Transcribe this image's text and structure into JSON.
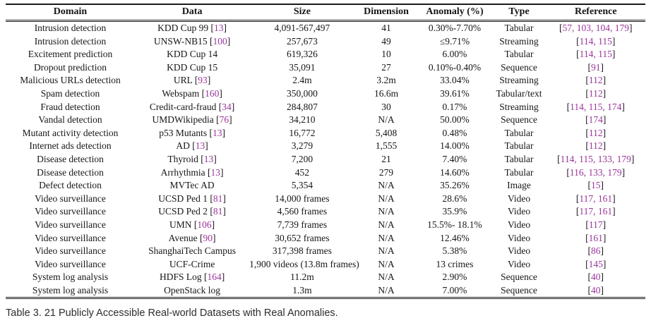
{
  "table": {
    "columns": [
      "Domain",
      "Data",
      "Size",
      "Dimension",
      "Anomaly (%)",
      "Type",
      "Reference"
    ],
    "rows": [
      {
        "domain": "Intrusion detection",
        "data": "KDD Cup 99",
        "cite": "13",
        "size": "4,091-567,497",
        "dimension": "41",
        "anomaly": "0.30%-7.70%",
        "type": "Tabular",
        "references": [
          "57",
          "103",
          "104",
          "179"
        ]
      },
      {
        "domain": "Intrusion detection",
        "data": "UNSW-NB15",
        "cite": "100",
        "size": "257,673",
        "dimension": "49",
        "anomaly": "≤9.71%",
        "type": "Streaming",
        "references": [
          "114",
          "115"
        ]
      },
      {
        "domain": "Excitement prediction",
        "data": "KDD Cup 14",
        "cite": null,
        "size": "619,326",
        "dimension": "10",
        "anomaly": "6.00%",
        "type": "Tabular",
        "references": [
          "114",
          "115"
        ]
      },
      {
        "domain": "Dropout prediction",
        "data": "KDD Cup 15",
        "cite": null,
        "size": "35,091",
        "dimension": "27",
        "anomaly": "0.10%-0.40%",
        "type": "Sequence",
        "references": [
          "91"
        ]
      },
      {
        "domain": "Malicious URLs detection",
        "data": "URL",
        "cite": "93",
        "size": "2.4m",
        "dimension": "3.2m",
        "anomaly": "33.04%",
        "type": "Streaming",
        "references": [
          "112"
        ]
      },
      {
        "domain": "Spam detection",
        "data": "Webspam",
        "cite": "160",
        "size": "350,000",
        "dimension": "16.6m",
        "anomaly": "39.61%",
        "type": "Tabular/text",
        "references": [
          "112"
        ]
      },
      {
        "domain": "Fraud detection",
        "data": "Credit-card-fraud",
        "cite": "34",
        "size": "284,807",
        "dimension": "30",
        "anomaly": "0.17%",
        "type": "Streaming",
        "references": [
          "114",
          "115",
          "174"
        ]
      },
      {
        "domain": "Vandal detection",
        "data": "UMDWikipedia",
        "cite": "76",
        "size": "34,210",
        "dimension": "N/A",
        "anomaly": "50.00%",
        "type": "Sequence",
        "references": [
          "174"
        ]
      },
      {
        "domain": "Mutant activity detection",
        "data": "p53 Mutants",
        "cite": "13",
        "size": "16,772",
        "dimension": "5,408",
        "anomaly": "0.48%",
        "type": "Tabular",
        "references": [
          "112"
        ]
      },
      {
        "domain": "Internet ads detection",
        "data": "AD",
        "cite": "13",
        "size": "3,279",
        "dimension": "1,555",
        "anomaly": "14.00%",
        "type": "Tabular",
        "references": [
          "112"
        ]
      },
      {
        "domain": "Disease detection",
        "data": "Thyroid",
        "cite": "13",
        "size": "7,200",
        "dimension": "21",
        "anomaly": "7.40%",
        "type": "Tabular",
        "references": [
          "114",
          "115",
          "133",
          "179"
        ]
      },
      {
        "domain": "Disease detection",
        "data": "Arrhythmia",
        "cite": "13",
        "size": "452",
        "dimension": "279",
        "anomaly": "14.60%",
        "type": "Tabular",
        "references": [
          "116",
          "133",
          "179"
        ]
      },
      {
        "domain": "Defect detection",
        "data": "MVTec AD",
        "cite": null,
        "size": "5,354",
        "dimension": "N/A",
        "anomaly": "35.26%",
        "type": "Image",
        "references": [
          "15"
        ]
      },
      {
        "domain": "Video surveillance",
        "data": "UCSD Ped 1",
        "cite": "81",
        "size": "14,000 frames",
        "dimension": "N/A",
        "anomaly": "28.6%",
        "type": "Video",
        "references": [
          "117",
          "161"
        ]
      },
      {
        "domain": "Video surveillance",
        "data": "UCSD Ped 2",
        "cite": "81",
        "size": "4,560 frames",
        "dimension": "N/A",
        "anomaly": "35.9%",
        "type": "Video",
        "references": [
          "117",
          "161"
        ]
      },
      {
        "domain": "Video surveillance",
        "data": "UMN",
        "cite": "106",
        "size": "7,739 frames",
        "dimension": "N/A",
        "anomaly": "15.5%- 18.1%",
        "type": "Video",
        "references": [
          "117"
        ]
      },
      {
        "domain": "Video surveillance",
        "data": "Avenue",
        "cite": "90",
        "size": "30,652 frames",
        "dimension": "N/A",
        "anomaly": "12.46%",
        "type": "Video",
        "references": [
          "161"
        ]
      },
      {
        "domain": "Video surveillance",
        "data": "ShanghaiTech Campus",
        "cite": null,
        "size": "317,398 frames",
        "dimension": "N/A",
        "anomaly": "5.38%",
        "type": "Video",
        "references": [
          "86"
        ]
      },
      {
        "domain": "Video surveillance",
        "data": "UCF-Crime",
        "cite": null,
        "size": "1,900 videos (13.8m frames)",
        "dimension": "N/A",
        "anomaly": "13 crimes",
        "type": "Video",
        "references": [
          "145"
        ]
      },
      {
        "domain": "System log analysis",
        "data": "HDFS Log",
        "cite": "164",
        "size": "11.2m",
        "dimension": "N/A",
        "anomaly": "2.90%",
        "type": "Sequence",
        "references": [
          "40"
        ]
      },
      {
        "domain": "System log analysis",
        "data": "OpenStack log",
        "cite": null,
        "size": "1.3m",
        "dimension": "N/A",
        "anomaly": "7.00%",
        "type": "Sequence",
        "references": [
          "40"
        ]
      }
    ],
    "caption": "Table 3. 21 Publicly Accessible Real-world Datasets with Real Anomalies."
  },
  "colors": {
    "citation_link": "#9a359a",
    "body_text": "#161616",
    "rule": "#1a1a1a",
    "caption_text": "#2d2d2d"
  }
}
